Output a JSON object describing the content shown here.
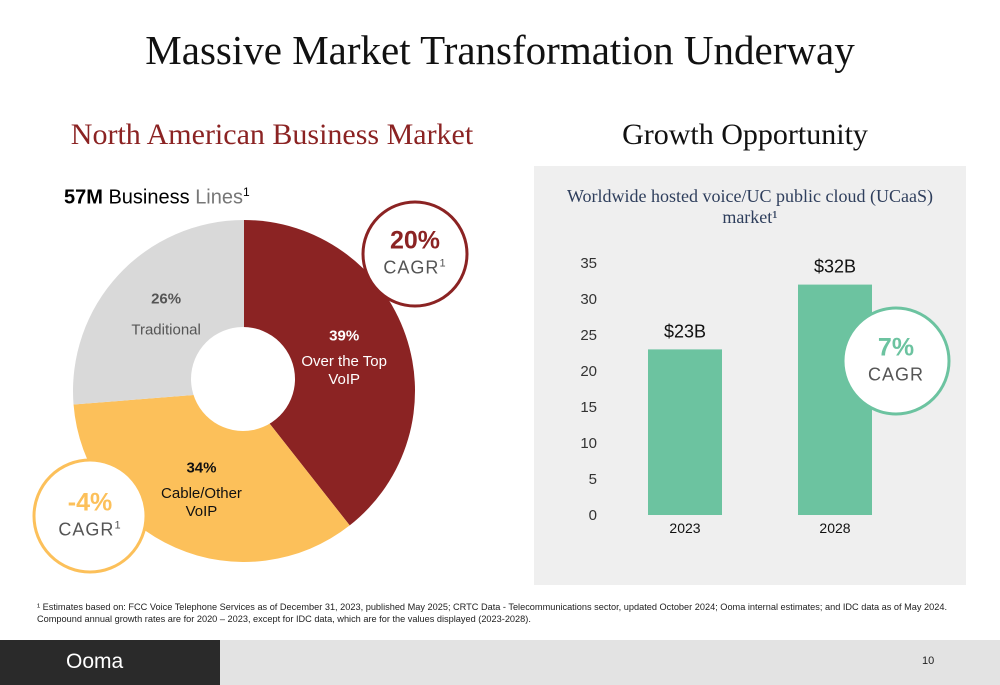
{
  "title": "Massive Market Transformation Underway",
  "chart_data": [
    {
      "type": "pie",
      "heading": "North American Business Market",
      "title_parts": [
        "57M",
        "Business",
        "Lines",
        "1"
      ],
      "categories": [
        "Over the Top VoIP",
        "Cable/Other VoIP",
        "Traditional"
      ],
      "values": [
        39,
        34,
        26
      ],
      "value_labels": [
        "39%",
        "34%",
        "26%"
      ],
      "colors": [
        "#8b2323",
        "#fcc05a",
        "#d9d9d9"
      ],
      "annotations": [
        {
          "text": "20%",
          "label": "CAGR",
          "note": "1",
          "color": "#8b2323"
        },
        {
          "text": "-4%",
          "label": "CAGR",
          "note": "1",
          "color": "#fcc05a"
        }
      ]
    },
    {
      "type": "bar",
      "heading": "Growth Opportunity",
      "title": "Worldwide hosted voice/UC public cloud (UCaaS) market¹",
      "categories": [
        "2023",
        "2028"
      ],
      "values": [
        23,
        32
      ],
      "value_labels": [
        "$23B",
        "$32B"
      ],
      "color": "#6cc3a0",
      "ylim": [
        0,
        35
      ],
      "yticks": [
        0,
        5,
        10,
        15,
        20,
        25,
        30,
        35
      ],
      "grid": false,
      "annotations": [
        {
          "text": "7%",
          "label": "CAGR",
          "color": "#6cc3a0"
        }
      ]
    }
  ],
  "footnote": "¹ Estimates based on: FCC Voice Telephone Services as of December 31, 2023, published May 2025; CRTC Data - Telecommunications sector, updated October 2024; Ooma internal estimates;  and IDC data as of May 2024. Compound annual growth rates are for 2020 – 2023, except for IDC data, which are for the values displayed (2023-2028).",
  "footer": {
    "logo": "Ooma",
    "page": "10"
  }
}
